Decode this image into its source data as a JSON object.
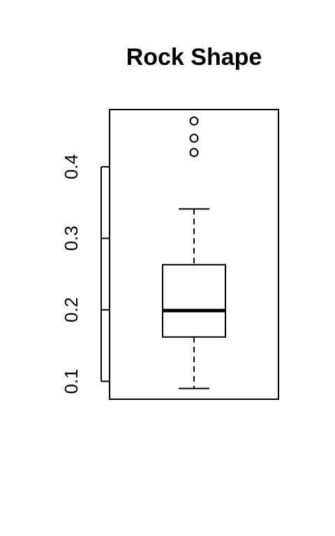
{
  "chart_data": {
    "type": "boxplot",
    "title": "Rock Shape",
    "xlabel": "",
    "ylabel": "",
    "ylim": [
      0.075,
      0.48
    ],
    "y_ticks": [
      0.1,
      0.2,
      0.3,
      0.4
    ],
    "y_tick_labels": [
      "0.1",
      "0.2",
      "0.3",
      "0.4"
    ],
    "box": {
      "whisker_low": 0.09,
      "q1": 0.162,
      "median": 0.199,
      "q3": 0.263,
      "whisker_high": 0.341
    },
    "outliers": [
      0.42,
      0.44,
      0.464
    ],
    "grid": false,
    "legend": "none"
  }
}
